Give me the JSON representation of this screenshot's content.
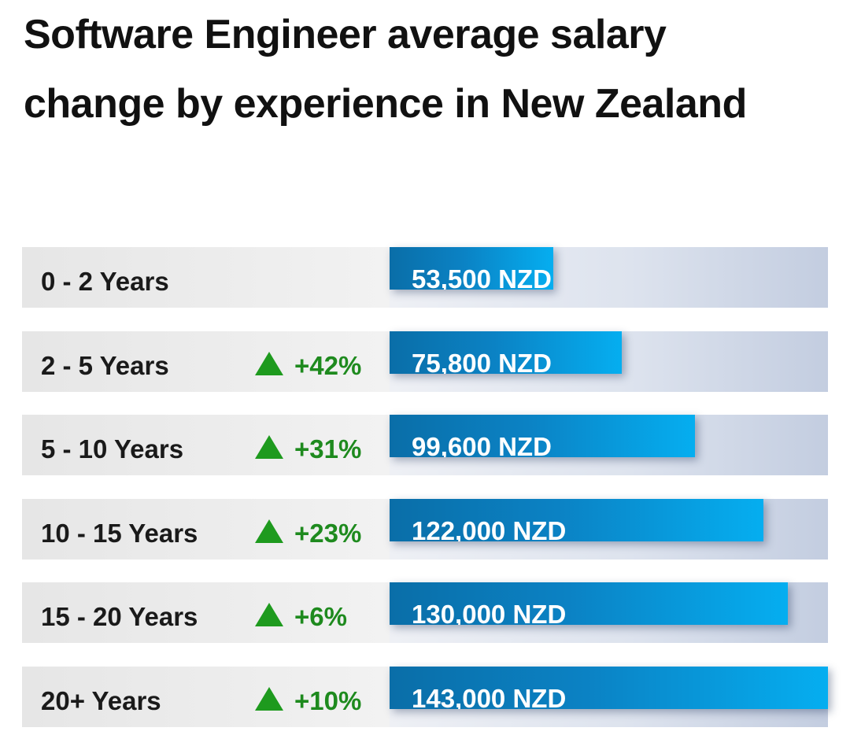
{
  "chart_data": {
    "type": "bar",
    "title": "Software Engineer average salary change by experience in New Zealand",
    "unit": "NZD",
    "max_value": 143000,
    "categories": [
      "0 - 2 Years",
      "2 - 5 Years",
      "5 - 10 Years",
      "10 - 15 Years",
      "15 - 20 Years",
      "20+ Years"
    ],
    "values": [
      53500,
      75800,
      99600,
      122000,
      130000,
      143000
    ],
    "value_labels": [
      "53,500 NZD",
      "75,800 NZD",
      "99,600 NZD",
      "122,000 NZD",
      "130,000 NZD",
      "143,000 NZD"
    ],
    "changes": [
      "",
      "+42%",
      "+31%",
      "+23%",
      "+6%",
      "+10%"
    ],
    "colors": {
      "bar_start": "#0a6ea8",
      "bar_end": "#05aef0",
      "change_text": "#1e8a1e",
      "change_icon": "#1e9a1e"
    },
    "change_icon": "up-triangle-icon"
  }
}
